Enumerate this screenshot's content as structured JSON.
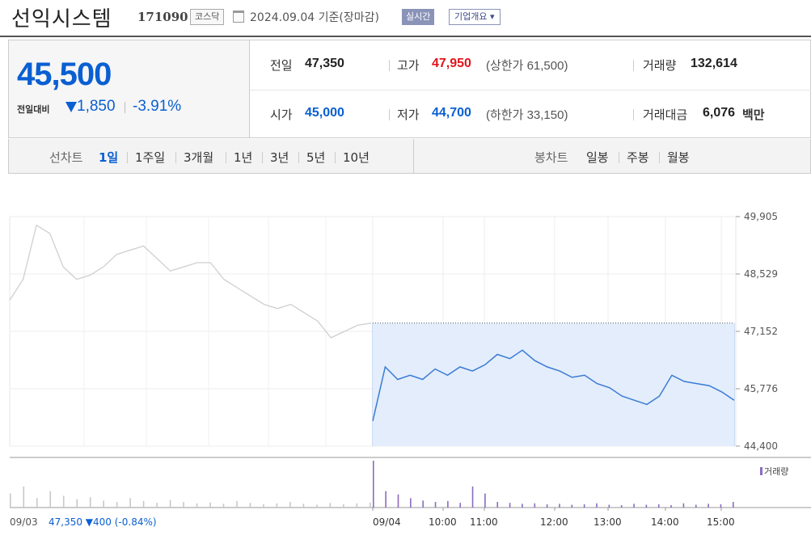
{
  "header": {
    "company": "선익시스템",
    "code": "171090",
    "market": "코스닥",
    "date_text": "2024.09.04  기준(장마감)",
    "realtime_label": "실시간",
    "overview_label": "기업개요 ▾"
  },
  "quote": {
    "price": "45,500",
    "prev_label": "전일대비",
    "change_amount": "1,850",
    "change_percent": "-3.91%",
    "stats": {
      "prev_close_label": "전일",
      "prev_close": "47,350",
      "high_label": "고가",
      "high": "47,950",
      "upper_limit": "(상한가 61,500)",
      "volume_label": "거래량",
      "volume": "132,614",
      "open_label": "시가",
      "open": "45,000",
      "low_label": "저가",
      "low": "44,700",
      "lower_limit": "(하한가 33,150)",
      "trade_value_label": "거래대금",
      "trade_value": "6,076",
      "trade_value_unit": "백만"
    }
  },
  "period_bar": {
    "line_label": "선차트",
    "line_periods": [
      "1일",
      "1주일",
      "3개월",
      "1년",
      "3년",
      "5년",
      "10년"
    ],
    "candle_label": "봉차트",
    "candle_periods": [
      "일봉",
      "주봉",
      "월봉"
    ],
    "selected": "1일"
  },
  "chart_data": {
    "type": "line",
    "y_ticks": [
      "49,905",
      "48,529",
      "47,152",
      "45,776",
      "44,400"
    ],
    "ylim": [
      44400,
      49905
    ],
    "x_ticks": [
      "09/04",
      "10:00",
      "11:00",
      "12:00",
      "13:00",
      "14:00",
      "15:00"
    ],
    "prev_day_label": "09/03",
    "prev_day_summary": "47,350 ▼400 (-0.84%)",
    "volume_legend": "거래량",
    "prev_close_line": 47350,
    "series": [
      {
        "day": "09/03",
        "values": [
          47900,
          48400,
          49700,
          49500,
          48700,
          48400,
          48500,
          48700,
          49000,
          49100,
          49200,
          48900,
          48600,
          48700,
          48800,
          48800,
          48400,
          48200,
          48000,
          47800,
          47700,
          47800,
          47600,
          47400,
          47000,
          47150,
          47300,
          47350
        ]
      },
      {
        "day": "09/04",
        "values": [
          45000,
          46300,
          46000,
          46100,
          46000,
          46250,
          46100,
          46300,
          46200,
          46350,
          46600,
          46500,
          46700,
          46450,
          46300,
          46200,
          46050,
          46100,
          45900,
          45800,
          45600,
          45500,
          45400,
          45600,
          46100,
          45950,
          45900,
          45850,
          45700,
          45500
        ]
      }
    ],
    "volume": {
      "09/03": [
        30,
        45,
        20,
        35,
        25,
        18,
        22,
        15,
        12,
        20,
        14,
        10,
        16,
        12,
        9,
        11,
        8,
        14,
        10,
        7,
        9,
        12,
        8,
        6,
        10,
        7,
        9,
        11
      ],
      "09/04": [
        100,
        35,
        28,
        20,
        15,
        12,
        14,
        10,
        45,
        30,
        12,
        10,
        8,
        9,
        7,
        8,
        6,
        7,
        9,
        6,
        5,
        8,
        6,
        7,
        5,
        9,
        6,
        8,
        7,
        12
      ]
    }
  }
}
